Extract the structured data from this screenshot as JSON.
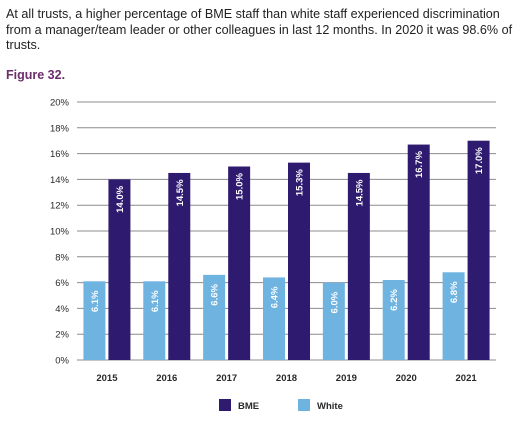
{
  "intro_text": "At all trusts, a higher percentage of BME staff than white staff experienced discrimination from a manager/team leader or other colleagues in last 12 months. In 2020 it was 98.6% of trusts.",
  "figure_title": "Figure 32.",
  "chart_data": {
    "type": "bar",
    "categories": [
      "2015",
      "2016",
      "2017",
      "2018",
      "2019",
      "2020",
      "2021"
    ],
    "series": [
      {
        "name": "BME",
        "color": "#2e1a6e",
        "values": [
          14.0,
          14.5,
          15.0,
          15.3,
          14.5,
          16.7,
          17.0
        ],
        "labels": [
          "14.0%",
          "14.5%",
          "15.0%",
          "15.3%",
          "14.5%",
          "16.7%",
          "17.0%"
        ]
      },
      {
        "name": "White",
        "color": "#6fb3e0",
        "values": [
          6.1,
          6.1,
          6.6,
          6.4,
          6.0,
          6.2,
          6.8
        ],
        "labels": [
          "6.1%",
          "6.1%",
          "6.6%",
          "6.4%",
          "6.0%",
          "6.2%",
          "6.8%"
        ]
      }
    ],
    "ylim": [
      0,
      20
    ],
    "yticks": [
      0,
      2,
      4,
      6,
      8,
      10,
      12,
      14,
      16,
      18,
      20
    ],
    "ytick_labels": [
      "0%",
      "2%",
      "4%",
      "6%",
      "8%",
      "10%",
      "12%",
      "14%",
      "16%",
      "18%",
      "20%"
    ],
    "grid": true,
    "legend_position": "bottom-center",
    "bar_order": [
      "White",
      "BME"
    ],
    "legend_order": [
      "BME",
      "White"
    ]
  }
}
